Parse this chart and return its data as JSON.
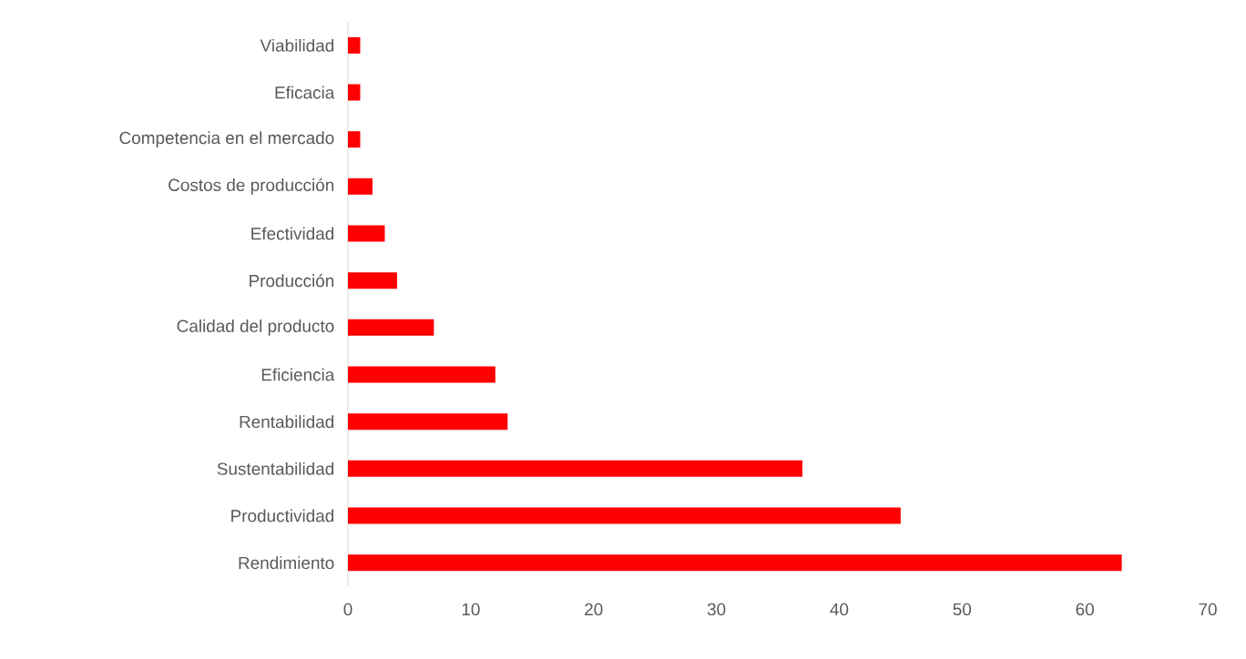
{
  "chart_data": {
    "type": "bar",
    "orientation": "horizontal",
    "categories": [
      "Viabilidad",
      "Eficacia",
      "Competencia en el mercado",
      "Costos de producción",
      "Efectividad",
      "Producción",
      "Calidad del producto",
      "Eficiencia",
      "Rentabilidad",
      "Sustentabilidad",
      "Productividad",
      "Rendimiento"
    ],
    "values": [
      1,
      1,
      1,
      2,
      3,
      4,
      7,
      12,
      13,
      37,
      45,
      63
    ],
    "color": "#ff0000",
    "xlim": [
      0,
      70
    ],
    "xticks": [
      0,
      10,
      20,
      30,
      40,
      50,
      60,
      70
    ],
    "grid": false
  }
}
